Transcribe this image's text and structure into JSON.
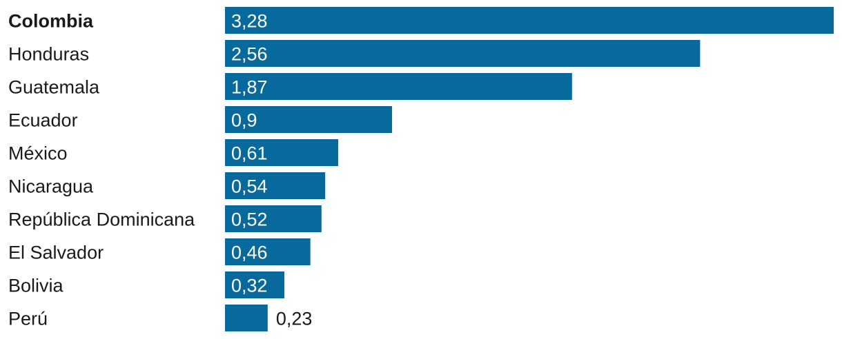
{
  "chart_data": {
    "type": "bar",
    "orientation": "horizontal",
    "categories": [
      "Colombia",
      "Honduras",
      "Guatemala",
      "Ecuador",
      "México",
      "Nicaragua",
      "República Dominicana",
      "El Salvador",
      "Bolivia",
      "Perú"
    ],
    "values": [
      3.28,
      2.56,
      1.87,
      0.9,
      0.61,
      0.54,
      0.52,
      0.46,
      0.32,
      0.23
    ],
    "value_labels": [
      "3,28",
      "2,56",
      "1,87",
      "0,9",
      "0,61",
      "0,54",
      "0,52",
      "0,46",
      "0,32",
      "0,23"
    ],
    "highlighted_category": "Colombia",
    "xlim": [
      0,
      3.28
    ],
    "grid": false,
    "bar_color": "#086a9c",
    "label_color_inside": "#ffffff",
    "label_color_outside": "#1a1a1a"
  }
}
